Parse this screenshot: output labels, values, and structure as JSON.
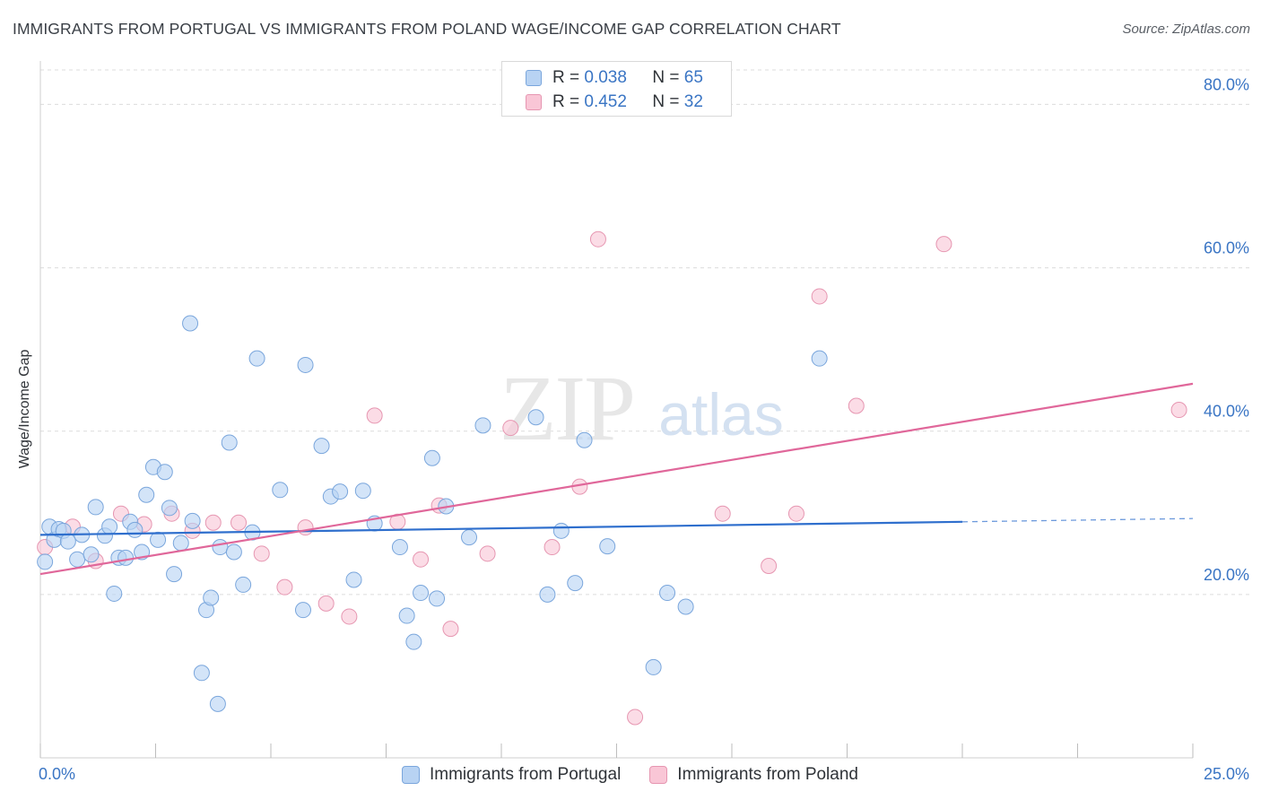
{
  "title": "IMMIGRANTS FROM PORTUGAL VS IMMIGRANTS FROM POLAND WAGE/INCOME GAP CORRELATION CHART",
  "source": "Source: ZipAtlas.com",
  "watermark": {
    "zip": "ZIP",
    "atlas": "atlas"
  },
  "legend_top": {
    "rows": [
      {
        "r_label": "R = ",
        "r_value": "0.038",
        "n_label": "N = ",
        "n_value": "65"
      },
      {
        "r_label": "R = ",
        "r_value": "0.452",
        "n_label": "N = ",
        "n_value": "32"
      }
    ]
  },
  "colors": {
    "portugal_fill": "#b8d3f3",
    "portugal_stroke": "#7aa6dc",
    "portugal_line": "#2f6fcd",
    "poland_fill": "#f9c6d6",
    "poland_stroke": "#e696b1",
    "poland_line": "#e0679a",
    "tick_text": "#3a75c4",
    "grid": "#dcdcdc"
  },
  "chart_data": {
    "type": "scatter",
    "title": "IMMIGRANTS FROM PORTUGAL VS IMMIGRANTS FROM POLAND WAGE/INCOME GAP CORRELATION CHART",
    "xlabel": "",
    "ylabel": "Wage/Income Gap",
    "xlim": [
      0,
      25
    ],
    "ylim": [
      0,
      84
    ],
    "x_tick_labels": [
      "0.0%",
      "25.0%"
    ],
    "x_tick_values": [
      0,
      25
    ],
    "y_ticks": [
      {
        "value": 20,
        "label": "20.0%"
      },
      {
        "value": 40,
        "label": "40.0%"
      },
      {
        "value": 60,
        "label": "60.0%"
      },
      {
        "value": 80,
        "label": "80.0%"
      }
    ],
    "grid": true,
    "legend_position": "bottom-center",
    "series": [
      {
        "name": "Immigrants from Portugal",
        "color": "#b8d3f3",
        "R": 0.038,
        "N": 65,
        "trend": {
          "x0": 0,
          "y0": 27.3,
          "x1": 20,
          "y1": 28.9,
          "dashed_to": 25,
          "dashed_y": 29.3
        },
        "points": [
          [
            0.1,
            24.0
          ],
          [
            0.2,
            28.3
          ],
          [
            0.3,
            26.7
          ],
          [
            0.4,
            28.0
          ],
          [
            0.5,
            27.8
          ],
          [
            0.6,
            26.5
          ],
          [
            0.8,
            24.3
          ],
          [
            0.9,
            27.3
          ],
          [
            1.1,
            24.9
          ],
          [
            1.2,
            30.7
          ],
          [
            1.4,
            27.2
          ],
          [
            1.5,
            28.3
          ],
          [
            1.6,
            20.1
          ],
          [
            1.7,
            24.5
          ],
          [
            1.85,
            24.5
          ],
          [
            1.95,
            28.9
          ],
          [
            2.05,
            27.9
          ],
          [
            2.2,
            25.2
          ],
          [
            2.3,
            32.2
          ],
          [
            2.45,
            35.6
          ],
          [
            2.55,
            26.7
          ],
          [
            2.7,
            35.0
          ],
          [
            2.8,
            30.6
          ],
          [
            2.9,
            22.5
          ],
          [
            3.05,
            26.3
          ],
          [
            3.25,
            53.2
          ],
          [
            3.3,
            29.0
          ],
          [
            3.5,
            10.4
          ],
          [
            3.6,
            18.1
          ],
          [
            3.7,
            19.6
          ],
          [
            3.85,
            6.6
          ],
          [
            3.9,
            25.8
          ],
          [
            4.1,
            38.6
          ],
          [
            4.2,
            25.2
          ],
          [
            4.4,
            21.2
          ],
          [
            4.6,
            27.6
          ],
          [
            4.7,
            48.9
          ],
          [
            5.2,
            32.8
          ],
          [
            5.7,
            18.1
          ],
          [
            5.75,
            48.1
          ],
          [
            6.1,
            38.2
          ],
          [
            6.3,
            32.0
          ],
          [
            6.5,
            32.6
          ],
          [
            6.8,
            21.8
          ],
          [
            7.0,
            32.7
          ],
          [
            7.25,
            28.7
          ],
          [
            7.8,
            25.8
          ],
          [
            7.95,
            17.4
          ],
          [
            8.1,
            14.2
          ],
          [
            8.25,
            20.2
          ],
          [
            8.5,
            36.7
          ],
          [
            8.6,
            19.5
          ],
          [
            8.8,
            30.8
          ],
          [
            9.3,
            27.0
          ],
          [
            9.6,
            40.7
          ],
          [
            10.75,
            41.7
          ],
          [
            11.0,
            20.0
          ],
          [
            11.3,
            27.8
          ],
          [
            11.6,
            21.4
          ],
          [
            11.8,
            38.9
          ],
          [
            12.3,
            25.9
          ],
          [
            13.3,
            11.1
          ],
          [
            13.6,
            20.2
          ],
          [
            14.0,
            18.5
          ],
          [
            16.9,
            48.9
          ]
        ]
      },
      {
        "name": "Immigrants from Poland",
        "color": "#f9c6d6",
        "R": 0.452,
        "N": 32,
        "trend": {
          "x0": 0,
          "y0": 22.5,
          "x1": 25,
          "y1": 45.8
        },
        "points": [
          [
            0.1,
            25.8
          ],
          [
            0.7,
            28.3
          ],
          [
            1.2,
            24.1
          ],
          [
            1.75,
            29.9
          ],
          [
            2.25,
            28.6
          ],
          [
            2.85,
            29.9
          ],
          [
            3.3,
            27.8
          ],
          [
            3.75,
            28.8
          ],
          [
            4.3,
            28.8
          ],
          [
            4.8,
            25.0
          ],
          [
            5.3,
            20.9
          ],
          [
            5.75,
            28.2
          ],
          [
            6.2,
            18.9
          ],
          [
            6.7,
            17.3
          ],
          [
            7.25,
            41.9
          ],
          [
            7.75,
            28.9
          ],
          [
            8.25,
            24.3
          ],
          [
            8.65,
            30.9
          ],
          [
            8.9,
            15.8
          ],
          [
            9.7,
            25.0
          ],
          [
            10.2,
            40.4
          ],
          [
            11.1,
            25.8
          ],
          [
            11.7,
            33.2
          ],
          [
            12.1,
            63.5
          ],
          [
            12.9,
            5.0
          ],
          [
            14.8,
            29.9
          ],
          [
            15.8,
            23.5
          ],
          [
            16.4,
            29.9
          ],
          [
            16.9,
            56.5
          ],
          [
            17.7,
            43.1
          ],
          [
            19.6,
            62.9
          ],
          [
            24.7,
            42.6
          ]
        ]
      }
    ]
  }
}
